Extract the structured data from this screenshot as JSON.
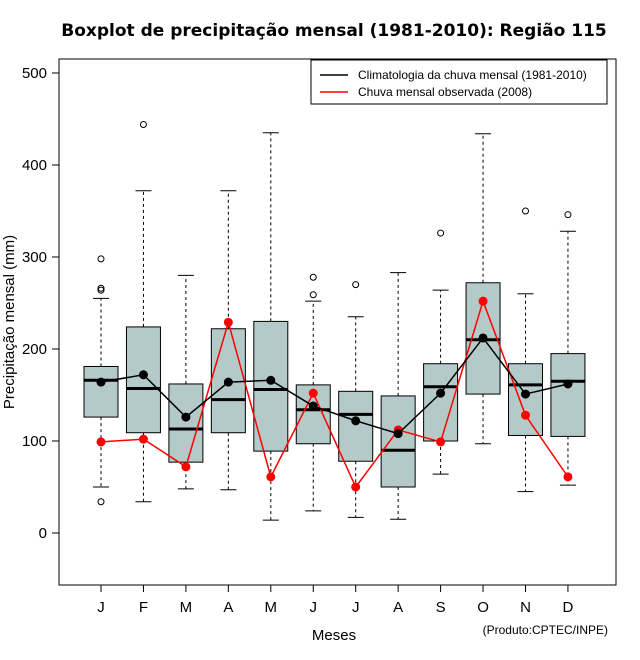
{
  "chart_data": {
    "type": "boxplot",
    "title": "Boxplot de precipitação mensal (1981-2010): Região 115",
    "xlabel": "Meses",
    "ylabel": "Precipitação mensal (mm)",
    "ylim": [
      -58,
      500
    ],
    "yticks": [
      0,
      100,
      200,
      300,
      400,
      500
    ],
    "categories": [
      "J",
      "F",
      "M",
      "A",
      "M",
      "J",
      "J",
      "A",
      "S",
      "O",
      "N",
      "D"
    ],
    "boxes": [
      {
        "low": 50,
        "q1": 126,
        "median": 166,
        "q3": 181,
        "high": 255,
        "outliers": [
          298,
          266,
          264,
          34
        ]
      },
      {
        "low": 34,
        "q1": 109,
        "median": 157,
        "q3": 224,
        "high": 372,
        "outliers": [
          444
        ]
      },
      {
        "low": 48,
        "q1": 77,
        "median": 113,
        "q3": 162,
        "high": 280,
        "outliers": []
      },
      {
        "low": 47,
        "q1": 109,
        "median": 145,
        "q3": 222,
        "high": 372,
        "outliers": []
      },
      {
        "low": 14,
        "q1": 89,
        "median": 156,
        "q3": 230,
        "high": 435,
        "outliers": []
      },
      {
        "low": 24,
        "q1": 97,
        "median": 134,
        "q3": 161,
        "high": 252,
        "outliers": [
          278,
          259
        ]
      },
      {
        "low": 17,
        "q1": 78,
        "median": 129,
        "q3": 154,
        "high": 235,
        "outliers": [
          270
        ]
      },
      {
        "low": 15,
        "q1": 50,
        "median": 90,
        "q3": 149,
        "high": 283,
        "outliers": []
      },
      {
        "low": 64,
        "q1": 100,
        "median": 159,
        "q3": 184,
        "high": 264,
        "outliers": [
          326
        ]
      },
      {
        "low": 97,
        "q1": 151,
        "median": 210,
        "q3": 272,
        "high": 434,
        "outliers": []
      },
      {
        "low": 45,
        "q1": 106,
        "median": 161,
        "q3": 184,
        "high": 260,
        "outliers": [
          350
        ]
      },
      {
        "low": 52,
        "q1": 105,
        "median": 165,
        "q3": 195,
        "high": 328,
        "outliers": [
          346
        ]
      }
    ],
    "series": [
      {
        "name": "Climatologia da chuva mensal (1981-2010)",
        "color": "#000000",
        "values": [
          164,
          172,
          126,
          164,
          166,
          138,
          122,
          108,
          152,
          212,
          151,
          162
        ]
      },
      {
        "name": "Chuva mensal observada (2008)",
        "color": "#ff0000",
        "values": [
          99,
          102,
          72,
          229,
          61,
          152,
          50,
          112,
          99,
          252,
          128,
          61
        ]
      }
    ],
    "box_fill": "#b4cac9",
    "legend_position": "top-right",
    "credit": "(Produto:CPTEC/INPE)"
  }
}
